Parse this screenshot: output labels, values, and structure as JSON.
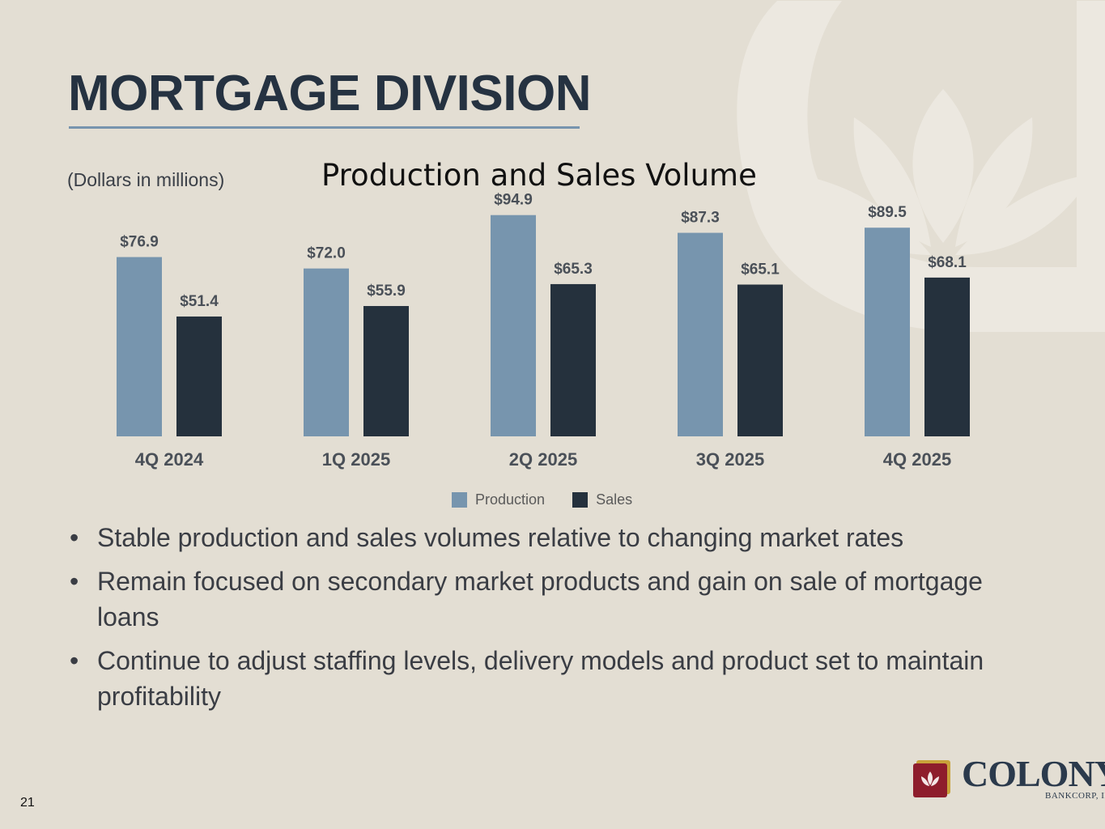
{
  "title": "MORTGAGE DIVISION",
  "units_note": "(Dollars in millions)",
  "colors": {
    "production": "#7795ae",
    "sales": "#25313d",
    "title": "#253241",
    "background": "#e3ded3"
  },
  "chart_data": {
    "type": "bar",
    "title": "Production and Sales Volume",
    "categories": [
      "4Q 2024",
      "1Q 2025",
      "2Q 2025",
      "3Q 2025",
      "4Q 2025"
    ],
    "series": [
      {
        "name": "Production",
        "values": [
          76.9,
          72.0,
          94.9,
          87.3,
          89.5
        ],
        "labels": [
          "$76.9",
          "$72.0",
          "$94.9",
          "$87.3",
          "$89.5"
        ]
      },
      {
        "name": "Sales",
        "values": [
          51.4,
          55.9,
          65.3,
          65.1,
          68.1
        ],
        "labels": [
          "$51.4",
          "$55.9",
          "$65.3",
          "$65.1",
          "$68.1"
        ]
      }
    ],
    "ylim": [
      0,
      100
    ],
    "legend": "bottom",
    "grid": false
  },
  "legend": {
    "production": "Production",
    "sales": "Sales"
  },
  "bullets": [
    "Stable production and sales volumes relative to changing market rates",
    "Remain focused on secondary market products and gain on sale of mortgage loans",
    "Continue to adjust staffing levels, delivery models and product set to maintain profitability"
  ],
  "bullet_char": "•",
  "page_number": "21",
  "logo": {
    "name": "COLONY",
    "sub": "BANKCORP, INC.",
    "icon": "lotus-icon"
  }
}
